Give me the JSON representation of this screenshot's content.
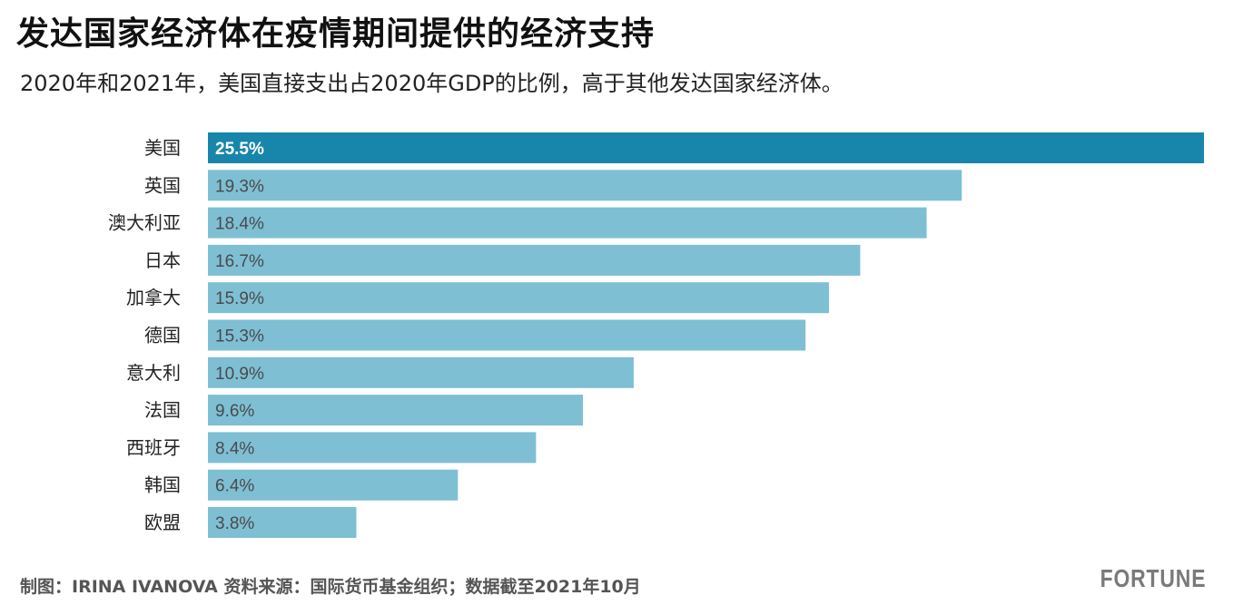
{
  "title": "发达国家经济体在疫情期间提供的经济支持",
  "subtitle": "2020年和2021年，美国直接支出占2020年GDP的比例，高于其他发达国家经济体。",
  "footer": "制图：IRINA IVANOVA 资料来源：国际货币基金组织；数据截至2021年10月",
  "logo": "FORTUNE",
  "colors": {
    "highlight": "#1886ab",
    "bar": "#7ebfd4",
    "highlight_label": "#ffffff",
    "bar_label": "#4a4a4a"
  },
  "chart_data": {
    "type": "bar",
    "orientation": "horizontal",
    "categories": [
      "美国",
      "英国",
      "澳大利亚",
      "日本",
      "加拿大",
      "德国",
      "意大利",
      "法国",
      "西班牙",
      "韩国",
      "欧盟"
    ],
    "values": [
      25.5,
      19.3,
      18.4,
      16.7,
      15.9,
      15.3,
      10.9,
      9.6,
      8.4,
      6.4,
      3.8
    ],
    "value_labels": [
      "25.5%",
      "19.3%",
      "18.4%",
      "16.7%",
      "15.9%",
      "15.3%",
      "10.9%",
      "9.6%",
      "8.4%",
      "6.4%",
      "3.8%"
    ],
    "highlight_index": 0,
    "xlim": [
      0,
      25.5
    ],
    "grid": false,
    "legend": "none"
  }
}
